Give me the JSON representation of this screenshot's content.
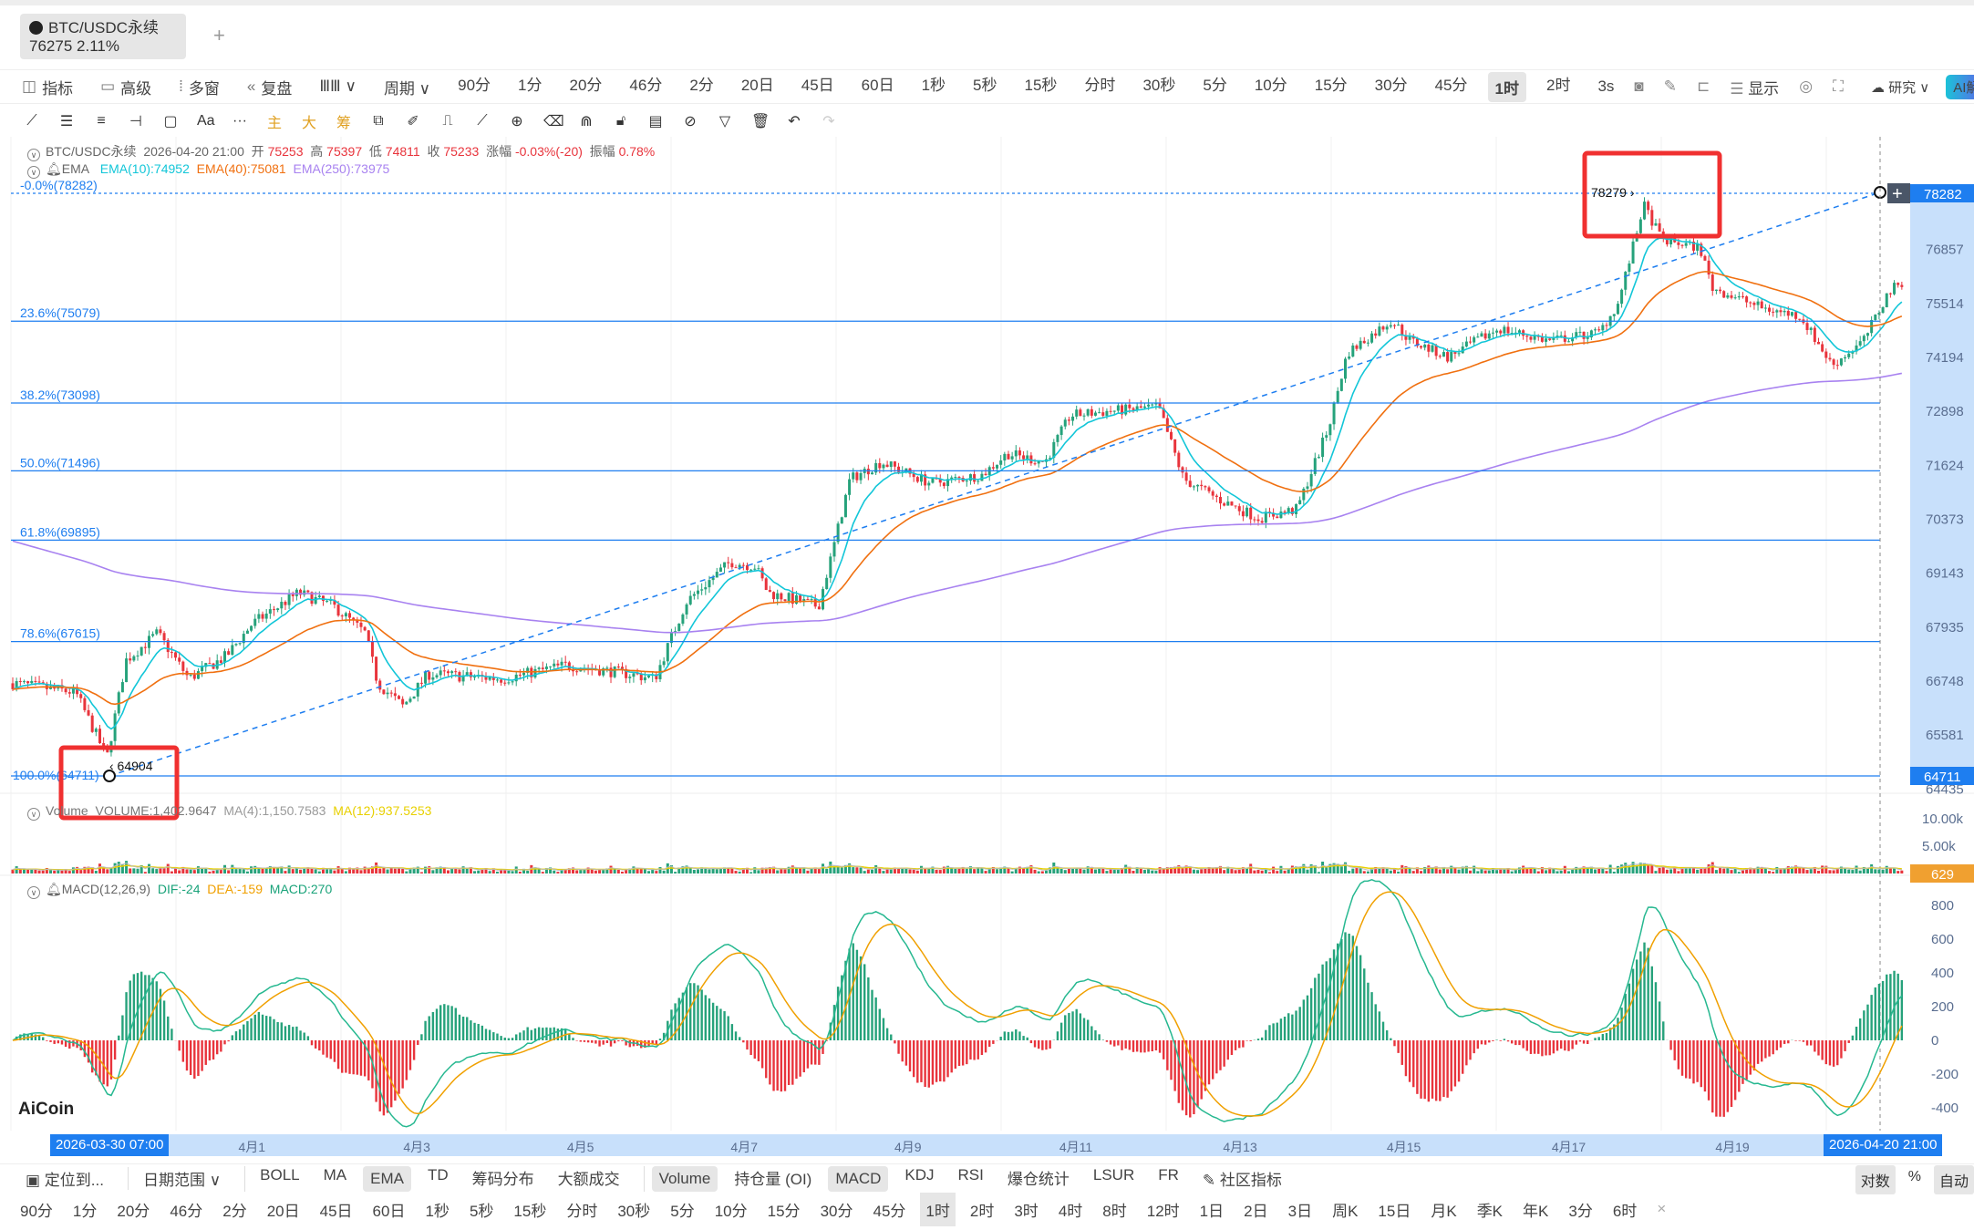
{
  "tab": {
    "symbol": "BTC/USDC永续",
    "price": "76275",
    "change": "2.11%",
    "add": "+"
  },
  "toolbar": {
    "left": [
      "指标",
      "高级",
      "多窗",
      "复盘"
    ],
    "period_label": "周期",
    "periods": [
      "90分",
      "1分",
      "20分",
      "46分",
      "2分",
      "20日",
      "45日",
      "60日",
      "1秒",
      "5秒",
      "15秒",
      "分时",
      "30秒",
      "5分",
      "10分",
      "15分",
      "30分",
      "45分",
      "1时",
      "2时"
    ],
    "active_period": "1时",
    "refresh": "3s",
    "display": "显示",
    "research": "研究",
    "ai": "AI解读"
  },
  "drawing_tools": [
    "line-icon",
    "parallel-icon",
    "fib-icon",
    "hline-icon",
    "rect-icon",
    "text-icon",
    "more-icon",
    "主",
    "大",
    "筹",
    "replay-icon",
    "brush-icon",
    "bookmark-icon",
    "ruler-icon",
    "zoom-icon",
    "eraser-icon",
    "magnet-icon",
    "lock-icon",
    "note-icon",
    "link-icon",
    "filter-icon",
    "trash-icon",
    "undo-icon",
    "redo-icon"
  ],
  "info": {
    "symbol": "BTC/USDC永续",
    "datetime": "2026-04-20 21:00",
    "open_label": "开",
    "open": "75253",
    "high_label": "高",
    "high": "75397",
    "low_label": "低",
    "low": "74811",
    "close_label": "收",
    "close": "75233",
    "chg_label": "涨幅",
    "chg": "-0.03%(-20)",
    "amp_label": "振幅",
    "amp": "0.78%"
  },
  "ema": {
    "label": "EMA",
    "ema10": "EMA(10):74952",
    "ema40": "EMA(40):75081",
    "ema250": "EMA(250):73975"
  },
  "fib": [
    {
      "label": "-0.0%(78282)",
      "price": 78282
    },
    {
      "label": "23.6%(75079)",
      "price": 75079
    },
    {
      "label": "38.2%(73098)",
      "price": 73098
    },
    {
      "label": "50.0%(71496)",
      "price": 71496
    },
    {
      "label": "61.8%(69895)",
      "price": 69895
    },
    {
      "label": "78.6%(67615)",
      "price": 67615
    },
    {
      "label": "100.0%(64711)",
      "price": 64711
    }
  ],
  "annotations": {
    "high": "78279",
    "low": "64904"
  },
  "price_axis": [
    "76857",
    "75514",
    "74194",
    "72898",
    "71624",
    "70373",
    "69143",
    "67935",
    "66748",
    "65581",
    "64435"
  ],
  "price_axis_badges": {
    "top": "78282",
    "bottom": "64711"
  },
  "volume": {
    "label": "Volume",
    "value": "VOLUME:1,402.9647",
    "ma4": "MA(4):1,150.7583",
    "ma12": "MA(12):937.5253",
    "axis": [
      "10.00k",
      "5.00k"
    ],
    "badge": "629"
  },
  "macd": {
    "label": "MACD(12,26,9)",
    "dif": "DIF:-24",
    "dea": "DEA:-159",
    "macd": "MACD:270",
    "axis": [
      "800",
      "600",
      "400",
      "200",
      "0",
      "-200",
      "-400"
    ]
  },
  "time_axis": {
    "start": "2026-03-30 07:00",
    "end": "2026-04-20 21:00",
    "labels": [
      "4月1",
      "4月3",
      "4月5",
      "4月7",
      "4月9",
      "4月11",
      "4月13",
      "4月15",
      "4月17",
      "4月19"
    ]
  },
  "logo": "AiCoin",
  "colors": {
    "up": "#26a27b",
    "down": "#e8343c",
    "fib": "#1e7ef0",
    "ema10": "#12c6d8",
    "ema40": "#f07010",
    "ema250": "#a882f0",
    "annotation": "#f03030"
  },
  "bottom": {
    "locate": "定位到...",
    "range": "日期范围",
    "main_ind": [
      "BOLL",
      "MA",
      "EMA",
      "TD",
      "筹码分布",
      "大额成交"
    ],
    "sub_ind": [
      "Volume",
      "持仓量 (OI)",
      "MACD",
      "KDJ",
      "RSI",
      "爆仓统计",
      "LSUR",
      "FR"
    ],
    "community": "社区指标",
    "right": [
      "对数",
      "%",
      "自动"
    ],
    "periods": [
      "90分",
      "1分",
      "20分",
      "46分",
      "2分",
      "20日",
      "45日",
      "60日",
      "1秒",
      "5秒",
      "15秒",
      "分时",
      "30秒",
      "5分",
      "10分",
      "15分",
      "30分",
      "45分",
      "1时",
      "2时",
      "3时",
      "4时",
      "8时",
      "12时",
      "1日",
      "2日",
      "3日",
      "周K",
      "15日",
      "月K",
      "季K",
      "年K",
      "3分",
      "6时"
    ],
    "close": "×"
  }
}
